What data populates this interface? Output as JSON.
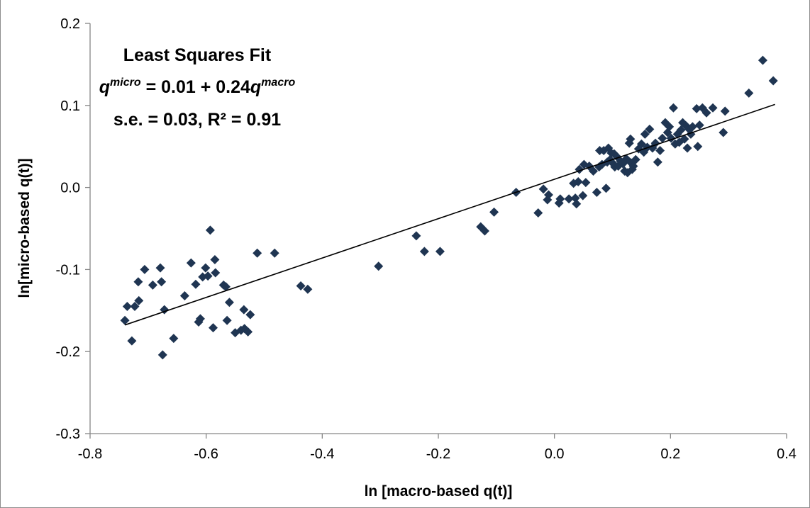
{
  "chart_data": {
    "type": "scatter",
    "title": "",
    "xlabel": "ln [macro-based q(t)]",
    "ylabel": "ln[micro-based q(t)]",
    "xlim": [
      -0.8,
      0.4
    ],
    "ylim": [
      -0.3,
      0.2
    ],
    "x_ticks": [
      -0.8,
      -0.6,
      -0.4,
      -0.2,
      0.0,
      0.2,
      0.4
    ],
    "y_ticks": [
      -0.3,
      -0.2,
      -0.1,
      0.0,
      0.1,
      0.2
    ],
    "x_tick_labels": [
      "-0.8",
      "-0.6",
      "-0.4",
      "-0.2",
      "0.0",
      "0.2",
      "0.4"
    ],
    "y_tick_labels": [
      "-0.3",
      "-0.2",
      "-0.1",
      "0.0",
      "0.1",
      "0.2"
    ],
    "grid": false,
    "legend": "none",
    "marker": "diamond",
    "marker_color": "#1f3552",
    "annotation": {
      "line1": "Least Squares Fit",
      "line2_lhs": "q",
      "line2_lhs_sup": "micro",
      "line2_mid": " = 0.01 + 0.24",
      "line2_rhs": "q",
      "line2_rhs_sup": "macro",
      "line3": "s.e. = 0.03, R² = 0.91"
    },
    "fit_line": {
      "intercept": 0.01,
      "slope": 0.24,
      "x_start": -0.74,
      "x_end": 0.38
    },
    "points": [
      [
        -0.74,
        -0.162
      ],
      [
        -0.736,
        -0.145
      ],
      [
        -0.728,
        -0.187
      ],
      [
        -0.723,
        -0.145
      ],
      [
        -0.717,
        -0.115
      ],
      [
        -0.716,
        -0.138
      ],
      [
        -0.706,
        -0.1
      ],
      [
        -0.692,
        -0.119
      ],
      [
        -0.679,
        -0.098
      ],
      [
        -0.677,
        -0.115
      ],
      [
        -0.675,
        -0.204
      ],
      [
        -0.672,
        -0.149
      ],
      [
        -0.656,
        -0.184
      ],
      [
        -0.637,
        -0.132
      ],
      [
        -0.626,
        -0.092
      ],
      [
        -0.618,
        -0.118
      ],
      [
        -0.613,
        -0.164
      ],
      [
        -0.61,
        -0.16
      ],
      [
        -0.606,
        -0.109
      ],
      [
        -0.601,
        -0.098
      ],
      [
        -0.597,
        -0.108
      ],
      [
        -0.593,
        -0.052
      ],
      [
        -0.588,
        -0.171
      ],
      [
        -0.585,
        -0.088
      ],
      [
        -0.584,
        -0.104
      ],
      [
        -0.57,
        -0.119
      ],
      [
        -0.566,
        -0.121
      ],
      [
        -0.564,
        -0.162
      ],
      [
        -0.56,
        -0.14
      ],
      [
        -0.55,
        -0.177
      ],
      [
        -0.54,
        -0.174
      ],
      [
        -0.535,
        -0.149
      ],
      [
        -0.534,
        -0.172
      ],
      [
        -0.528,
        -0.176
      ],
      [
        -0.524,
        -0.155
      ],
      [
        -0.512,
        -0.08
      ],
      [
        -0.482,
        -0.08
      ],
      [
        -0.437,
        -0.12
      ],
      [
        -0.425,
        -0.124
      ],
      [
        -0.303,
        -0.096
      ],
      [
        -0.238,
        -0.059
      ],
      [
        -0.224,
        -0.078
      ],
      [
        -0.197,
        -0.078
      ],
      [
        -0.127,
        -0.048
      ],
      [
        -0.12,
        -0.053
      ],
      [
        -0.104,
        -0.03
      ],
      [
        -0.066,
        -0.006
      ],
      [
        -0.028,
        -0.031
      ],
      [
        -0.019,
        -0.002
      ],
      [
        -0.012,
        -0.015
      ],
      [
        -0.01,
        -0.009
      ],
      [
        0.008,
        -0.019
      ],
      [
        0.01,
        -0.014
      ],
      [
        0.025,
        -0.014
      ],
      [
        0.033,
        0.005
      ],
      [
        0.036,
        -0.013
      ],
      [
        0.038,
        -0.02
      ],
      [
        0.041,
        0.007
      ],
      [
        0.043,
        0.022
      ],
      [
        0.049,
        -0.01
      ],
      [
        0.051,
        0.028
      ],
      [
        0.054,
        0.006
      ],
      [
        0.06,
        0.026
      ],
      [
        0.067,
        0.02
      ],
      [
        0.073,
        -0.006
      ],
      [
        0.077,
        0.025
      ],
      [
        0.078,
        0.045
      ],
      [
        0.082,
        0.028
      ],
      [
        0.085,
        0.045
      ],
      [
        0.089,
        -0.001
      ],
      [
        0.091,
        0.031
      ],
      [
        0.093,
        0.048
      ],
      [
        0.096,
        0.034
      ],
      [
        0.098,
        0.042
      ],
      [
        0.1,
        0.03
      ],
      [
        0.103,
        0.041
      ],
      [
        0.104,
        0.025
      ],
      [
        0.107,
        0.038
      ],
      [
        0.11,
        0.026
      ],
      [
        0.114,
        0.032
      ],
      [
        0.118,
        0.029
      ],
      [
        0.121,
        0.02
      ],
      [
        0.124,
        0.035
      ],
      [
        0.126,
        0.018
      ],
      [
        0.129,
        0.054
      ],
      [
        0.131,
        0.059
      ],
      [
        0.132,
        0.03
      ],
      [
        0.134,
        0.022
      ],
      [
        0.136,
        0.026
      ],
      [
        0.14,
        0.034
      ],
      [
        0.145,
        0.047
      ],
      [
        0.15,
        0.053
      ],
      [
        0.154,
        0.043
      ],
      [
        0.156,
        0.065
      ],
      [
        0.16,
        0.049
      ],
      [
        0.164,
        0.071
      ],
      [
        0.169,
        0.048
      ],
      [
        0.174,
        0.054
      ],
      [
        0.178,
        0.031
      ],
      [
        0.182,
        0.045
      ],
      [
        0.186,
        0.06
      ],
      [
        0.191,
        0.079
      ],
      [
        0.195,
        0.067
      ],
      [
        0.198,
        0.074
      ],
      [
        0.201,
        0.06
      ],
      [
        0.205,
        0.097
      ],
      [
        0.208,
        0.053
      ],
      [
        0.212,
        0.065
      ],
      [
        0.215,
        0.055
      ],
      [
        0.218,
        0.07
      ],
      [
        0.221,
        0.079
      ],
      [
        0.224,
        0.059
      ],
      [
        0.227,
        0.075
      ],
      [
        0.229,
        0.048
      ],
      [
        0.232,
        0.071
      ],
      [
        0.235,
        0.065
      ],
      [
        0.238,
        0.074
      ],
      [
        0.245,
        0.096
      ],
      [
        0.247,
        0.05
      ],
      [
        0.25,
        0.076
      ],
      [
        0.255,
        0.097
      ],
      [
        0.262,
        0.091
      ],
      [
        0.273,
        0.097
      ],
      [
        0.291,
        0.067
      ],
      [
        0.294,
        0.093
      ],
      [
        0.335,
        0.115
      ],
      [
        0.359,
        0.155
      ],
      [
        0.377,
        0.13
      ]
    ]
  }
}
